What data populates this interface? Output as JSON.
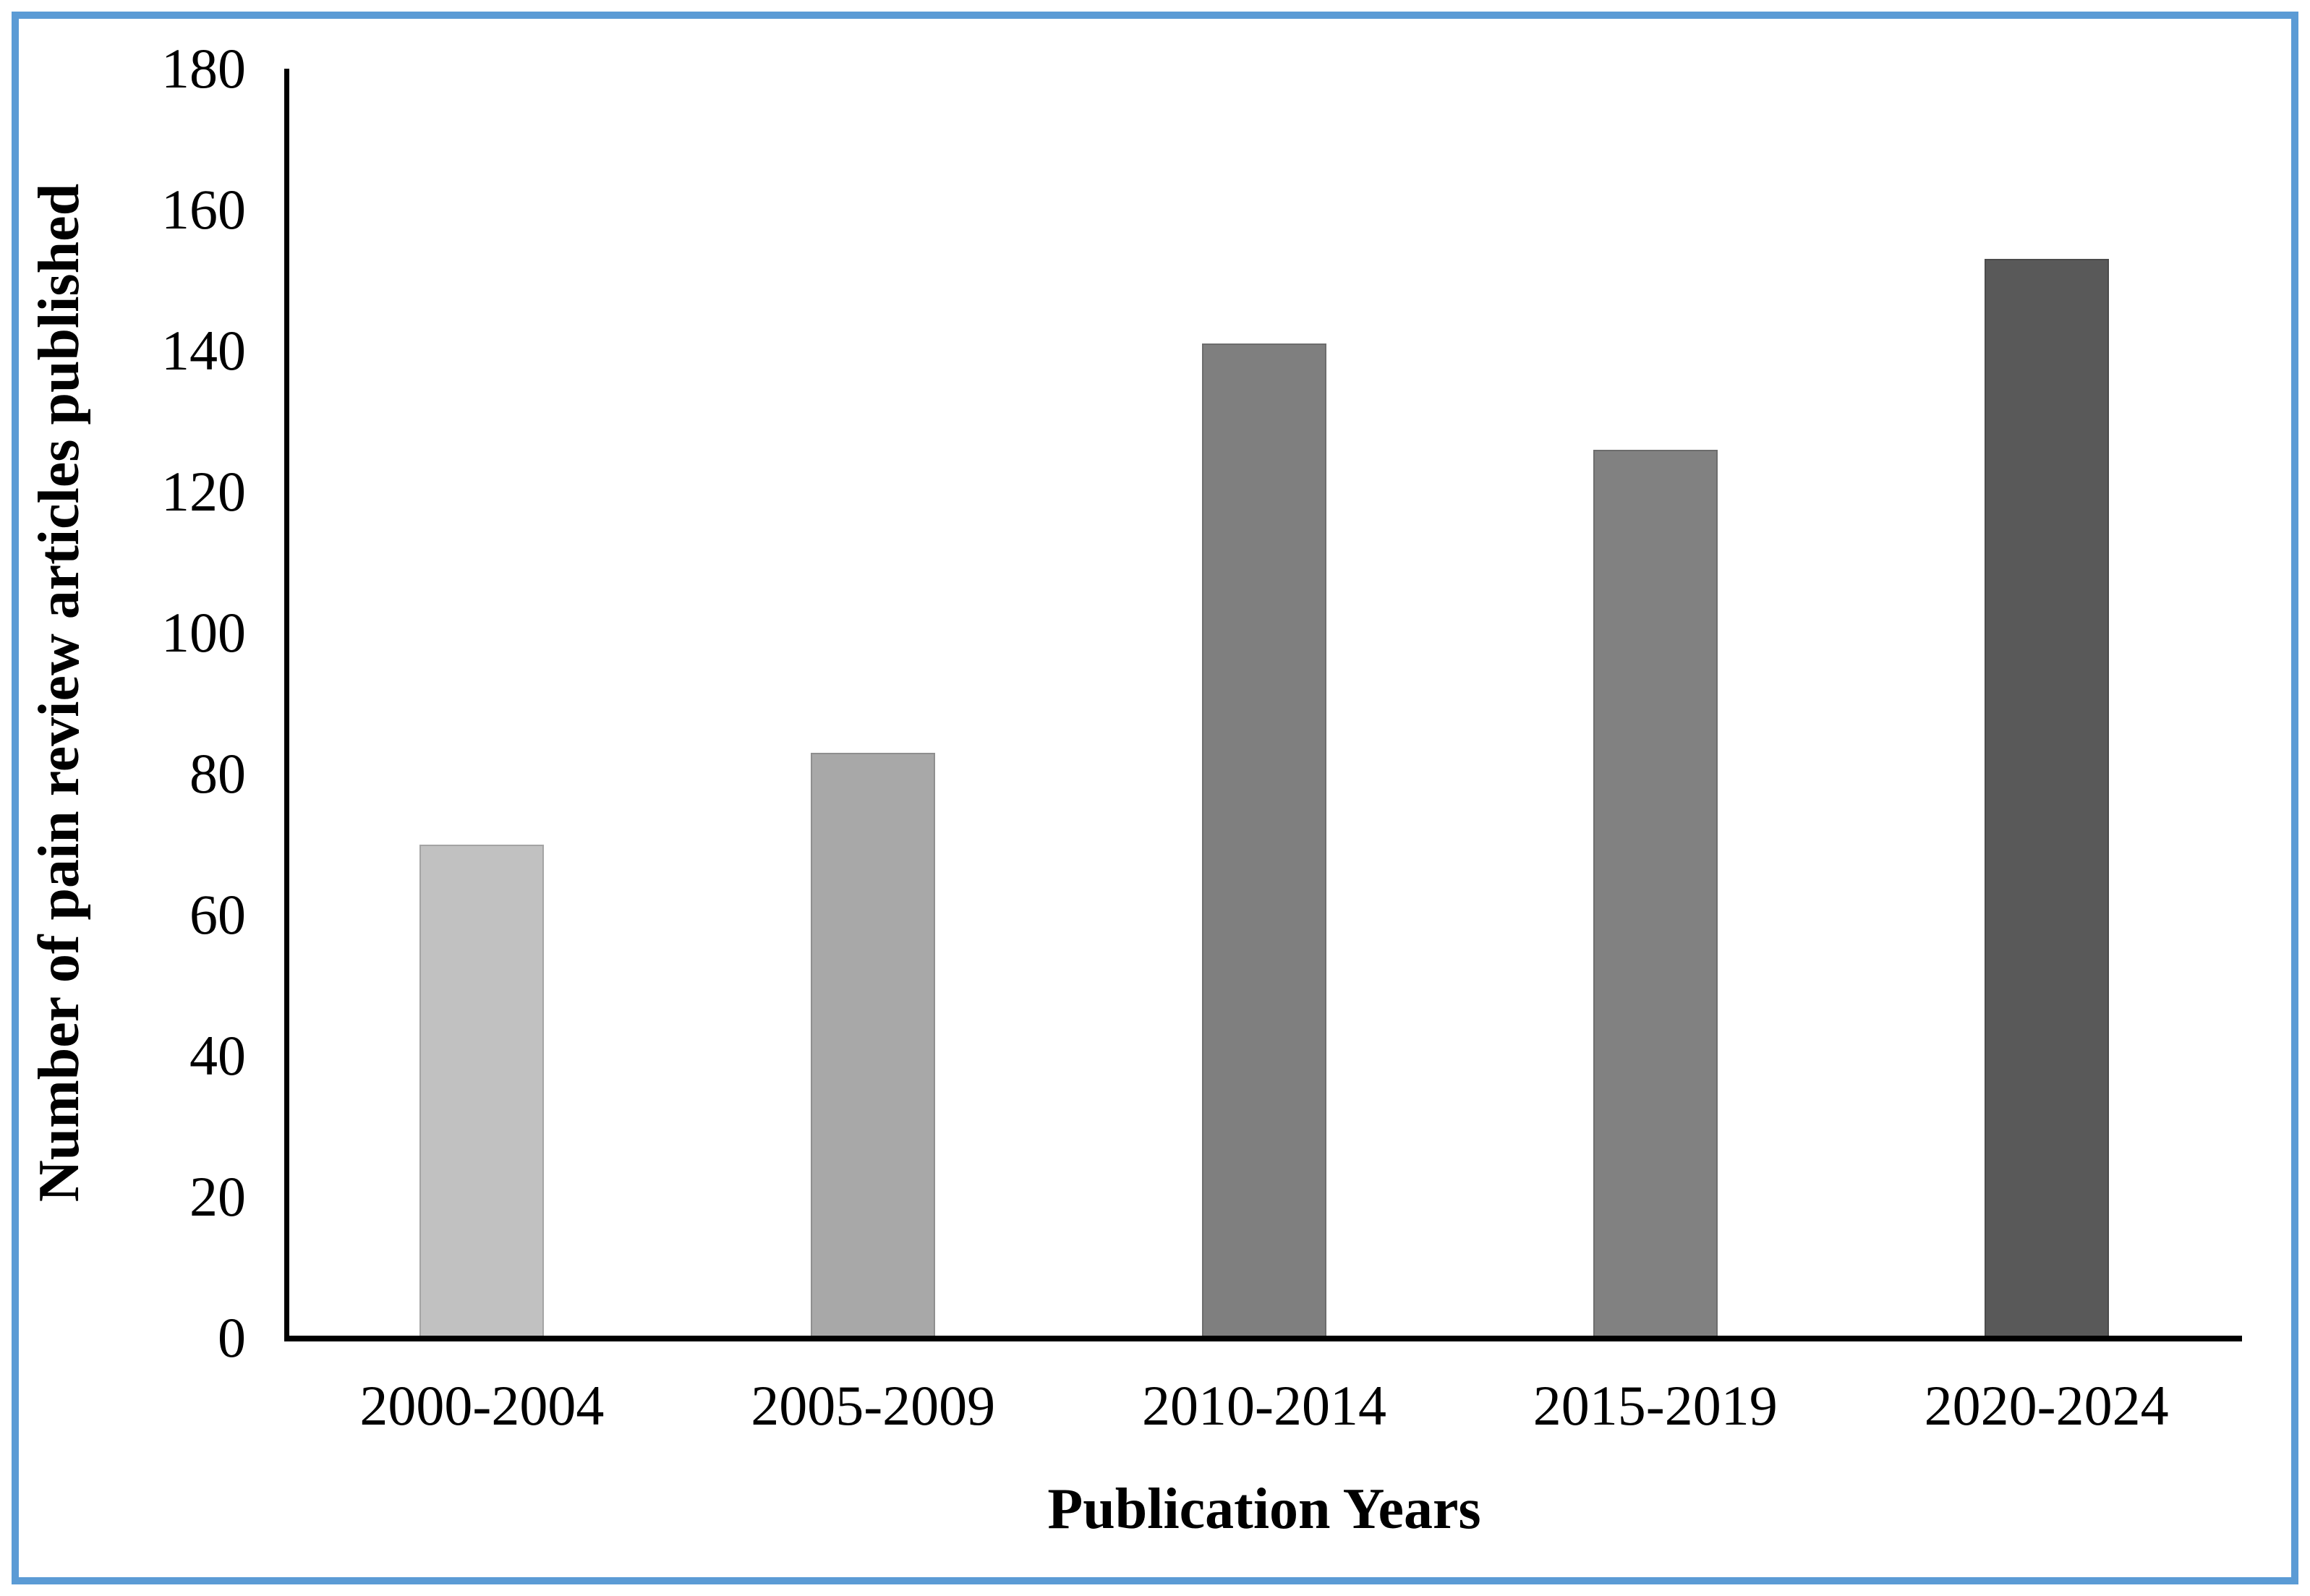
{
  "chart_data": {
    "type": "bar",
    "title": "",
    "categories": [
      "2000-2004",
      "2005-2009",
      "2010-2014",
      "2015-2019",
      "2020-2024"
    ],
    "values": [
      70,
      83,
      141,
      126,
      153
    ],
    "bar_colors": [
      "#C1C1C1",
      "#A8A8A8",
      "#7F7F7F",
      "#818181",
      "#595959"
    ],
    "xlabel": "Publication Years",
    "ylabel": "Number of pain review articles published",
    "ylim": [
      0,
      180
    ],
    "ytick_step": 20,
    "yticks": [
      0,
      20,
      40,
      60,
      80,
      100,
      120,
      140,
      160,
      180
    ],
    "grid": "off",
    "legend": "none",
    "axis_color": "#000000",
    "frame_color": "#5B9BD5",
    "background_color": "#FFFFFF"
  }
}
